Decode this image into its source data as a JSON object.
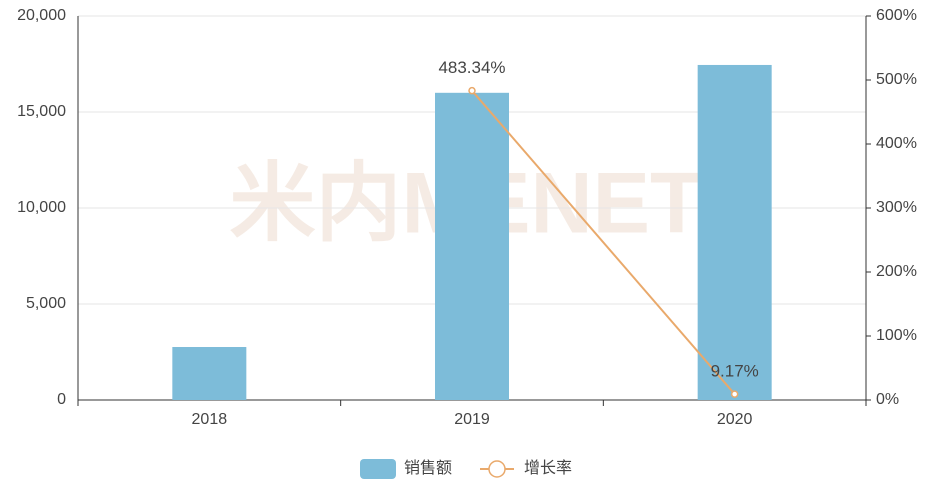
{
  "chart_data": {
    "type": "bar",
    "watermark": "米内MENET",
    "categories": [
      "2018",
      "2019",
      "2020"
    ],
    "series": [
      {
        "name": "销售额",
        "type": "bar",
        "color": "#7dbcd9",
        "values": [
          2760,
          16000,
          17450
        ]
      },
      {
        "name": "增长率",
        "type": "line",
        "axis": "y2",
        "color": "#e9a96b",
        "values": [
          null,
          483.34,
          9.17
        ],
        "value_labels": [
          null,
          "483.34%",
          "9.17%"
        ]
      }
    ],
    "ylim": [
      0,
      20000
    ],
    "yticks": [
      0,
      {
        "value": 5000,
        "label": "5,000"
      },
      {
        "value": 10000,
        "label": "10,000"
      },
      {
        "value": 15000,
        "label": "15,000"
      },
      {
        "value": 20000,
        "label": "20,000"
      }
    ],
    "y2lim": [
      0,
      600
    ],
    "y2ticks": [
      {
        "value": 0,
        "label": "0%"
      },
      {
        "value": 100,
        "label": "100%"
      },
      {
        "value": 200,
        "label": "200%"
      },
      {
        "value": 300,
        "label": "300%"
      },
      {
        "value": 400,
        "label": "400%"
      },
      {
        "value": 500,
        "label": "500%"
      },
      {
        "value": 600,
        "label": "600%"
      }
    ],
    "grid": true,
    "legend": "bottom"
  }
}
